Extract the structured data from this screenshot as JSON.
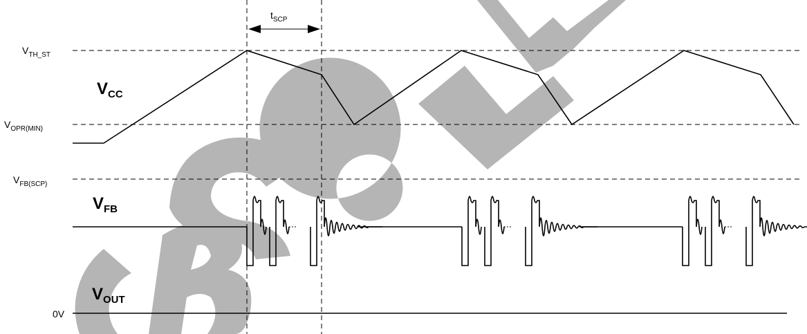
{
  "watermark": "OBSOLETE",
  "timing": {
    "main": "t",
    "sub": "SCP"
  },
  "levels": {
    "vth_st": {
      "main": "V",
      "sub": "TH_ST"
    },
    "vopr_min": {
      "main": "V",
      "sub": "OPR(MIN)"
    },
    "vfb_scp": {
      "main": "V",
      "sub": "FB(SCP)"
    },
    "zero": "0V"
  },
  "signals": {
    "vcc": {
      "main": "V",
      "sub": "CC"
    },
    "vfb": {
      "main": "V",
      "sub": "FB"
    },
    "vout": {
      "main": "V",
      "sub": "OUT"
    }
  }
}
